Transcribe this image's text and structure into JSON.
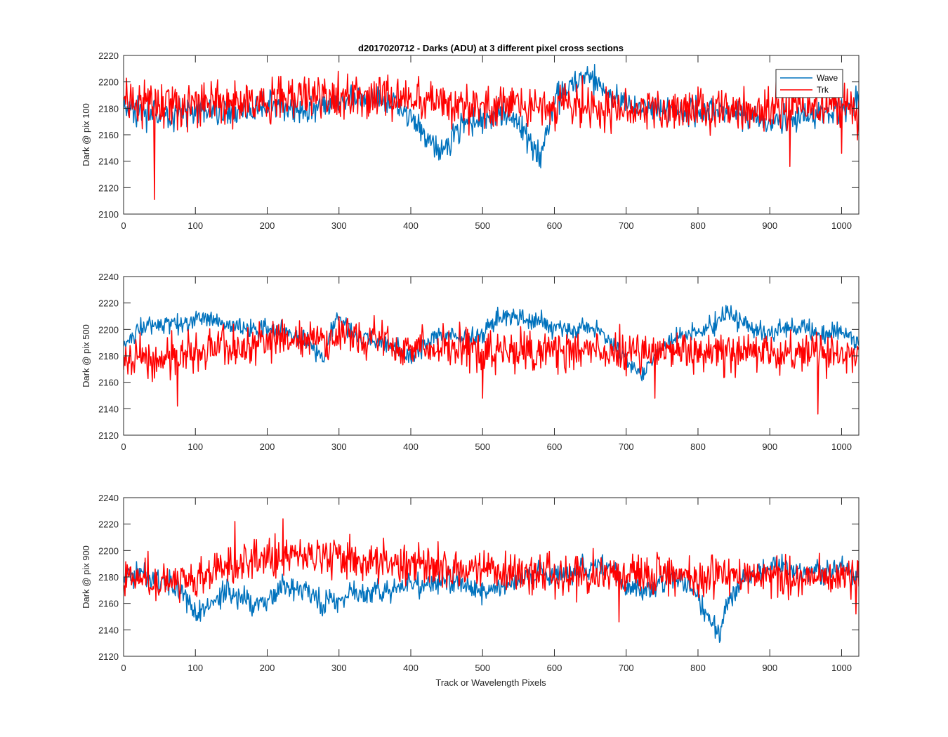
{
  "figure": {
    "title": "d2017020712 - Darks (ADU) at 3 different pixel cross sections",
    "xlabel": "Track or Wavelength Pixels"
  },
  "legend": {
    "placement": "top-right of first panel",
    "entries": [
      {
        "name": "Wave",
        "color": "#0072BD"
      },
      {
        "name": "Trk",
        "color": "#FF0000"
      }
    ]
  },
  "chart_data": [
    {
      "type": "line",
      "ylabel": "Dark @ pix 100",
      "xlim": [
        0,
        1024
      ],
      "ylim": [
        2100,
        2220
      ],
      "xticks": [
        "0",
        "100",
        "200",
        "300",
        "400",
        "500",
        "600",
        "700",
        "800",
        "900",
        "1000"
      ],
      "yticks": [
        "2100",
        "2120",
        "2140",
        "2160",
        "2180",
        "2200",
        "2220"
      ],
      "grid": false,
      "series": [
        {
          "name": "Wave",
          "color": "#0072BD",
          "x": [
            0,
            20,
            40,
            60,
            80,
            100,
            120,
            140,
            160,
            180,
            200,
            220,
            240,
            260,
            280,
            300,
            320,
            340,
            360,
            380,
            400,
            410,
            420,
            430,
            440,
            450,
            460,
            480,
            500,
            520,
            540,
            560,
            570,
            580,
            590,
            600,
            620,
            640,
            660,
            680,
            700,
            720,
            740,
            760,
            780,
            800,
            820,
            840,
            860,
            880,
            900,
            920,
            940,
            960,
            980,
            1000,
            1010,
            1024
          ],
          "y": [
            2180,
            2178,
            2175,
            2172,
            2176,
            2178,
            2180,
            2176,
            2178,
            2180,
            2181,
            2179,
            2178,
            2180,
            2182,
            2185,
            2188,
            2189,
            2188,
            2184,
            2175,
            2168,
            2160,
            2152,
            2146,
            2150,
            2162,
            2170,
            2173,
            2175,
            2172,
            2160,
            2150,
            2142,
            2160,
            2185,
            2196,
            2203,
            2200,
            2188,
            2184,
            2182,
            2181,
            2180,
            2179,
            2178,
            2177,
            2176,
            2175,
            2173,
            2170,
            2172,
            2174,
            2174,
            2175,
            2176,
            2180,
            2187
          ],
          "noise": 7
        },
        {
          "name": "Trk",
          "color": "#FF0000",
          "x": [
            0,
            50,
            100,
            150,
            200,
            250,
            300,
            350,
            400,
            450,
            500,
            550,
            600,
            650,
            700,
            750,
            800,
            850,
            900,
            950,
            1000,
            1024
          ],
          "y": [
            2182,
            2182,
            2182,
            2185,
            2186,
            2188,
            2190,
            2190,
            2186,
            2184,
            2182,
            2182,
            2182,
            2181,
            2181,
            2180,
            2180,
            2180,
            2180,
            2181,
            2181,
            2180
          ],
          "noise": 11,
          "spikes": [
            [
              43,
              2111
            ],
            [
              928,
              2136
            ],
            [
              1000,
              2146
            ],
            [
              1022,
              2156
            ]
          ]
        }
      ]
    },
    {
      "type": "line",
      "ylabel": "Dark @ pix 500",
      "xlim": [
        0,
        1024
      ],
      "ylim": [
        2120,
        2240
      ],
      "xticks": [
        "0",
        "100",
        "200",
        "300",
        "400",
        "500",
        "600",
        "700",
        "800",
        "900",
        "1000"
      ],
      "yticks": [
        "2120",
        "2140",
        "2160",
        "2180",
        "2200",
        "2220",
        "2240"
      ],
      "grid": false,
      "series": [
        {
          "name": "Wave",
          "color": "#0072BD",
          "x": [
            0,
            20,
            40,
            60,
            80,
            100,
            120,
            140,
            160,
            180,
            200,
            220,
            240,
            260,
            280,
            290,
            300,
            320,
            340,
            360,
            380,
            400,
            420,
            440,
            460,
            480,
            500,
            520,
            540,
            560,
            580,
            600,
            620,
            640,
            660,
            680,
            700,
            720,
            740,
            760,
            780,
            800,
            820,
            840,
            860,
            880,
            900,
            920,
            940,
            960,
            980,
            1000,
            1024
          ],
          "y": [
            2188,
            2200,
            2204,
            2206,
            2205,
            2208,
            2206,
            2203,
            2203,
            2200,
            2200,
            2198,
            2194,
            2188,
            2176,
            2200,
            2208,
            2196,
            2192,
            2190,
            2186,
            2180,
            2190,
            2196,
            2196,
            2192,
            2196,
            2208,
            2212,
            2206,
            2206,
            2200,
            2200,
            2200,
            2198,
            2190,
            2175,
            2168,
            2180,
            2190,
            2194,
            2198,
            2204,
            2212,
            2206,
            2200,
            2196,
            2200,
            2202,
            2198,
            2194,
            2200,
            2190
          ],
          "noise": 5
        },
        {
          "name": "Trk",
          "color": "#FF0000",
          "x": [
            0,
            50,
            100,
            150,
            200,
            250,
            300,
            350,
            400,
            450,
            500,
            550,
            600,
            650,
            700,
            750,
            800,
            850,
            900,
            950,
            1000,
            1024
          ],
          "y": [
            2180,
            2178,
            2182,
            2186,
            2190,
            2192,
            2194,
            2192,
            2188,
            2186,
            2184,
            2184,
            2184,
            2184,
            2184,
            2184,
            2184,
            2182,
            2182,
            2184,
            2182,
            2178
          ],
          "noise": 10,
          "spikes": [
            [
              75,
              2142
            ],
            [
              967,
              2136
            ],
            [
              500,
              2148
            ],
            [
              740,
              2148
            ]
          ]
        }
      ]
    },
    {
      "type": "line",
      "ylabel": "Dark @ pix 900",
      "xlim": [
        0,
        1024
      ],
      "ylim": [
        2120,
        2240
      ],
      "xticks": [
        "0",
        "100",
        "200",
        "300",
        "400",
        "500",
        "600",
        "700",
        "800",
        "900",
        "1000"
      ],
      "yticks": [
        "2120",
        "2140",
        "2160",
        "2180",
        "2200",
        "2220",
        "2240"
      ],
      "grid": false,
      "series": [
        {
          "name": "Wave",
          "color": "#0072BD",
          "x": [
            0,
            20,
            40,
            60,
            80,
            100,
            120,
            140,
            160,
            180,
            200,
            220,
            240,
            260,
            280,
            300,
            320,
            340,
            360,
            380,
            400,
            420,
            440,
            460,
            480,
            500,
            520,
            540,
            560,
            580,
            600,
            620,
            640,
            660,
            680,
            700,
            720,
            740,
            760,
            780,
            800,
            810,
            820,
            830,
            840,
            860,
            880,
            900,
            920,
            940,
            960,
            980,
            1000,
            1024
          ],
          "y": [
            2180,
            2182,
            2180,
            2176,
            2168,
            2155,
            2158,
            2170,
            2165,
            2158,
            2162,
            2174,
            2172,
            2168,
            2160,
            2165,
            2170,
            2168,
            2170,
            2172,
            2174,
            2176,
            2178,
            2176,
            2172,
            2168,
            2172,
            2176,
            2180,
            2182,
            2182,
            2184,
            2186,
            2188,
            2186,
            2172,
            2170,
            2172,
            2180,
            2176,
            2166,
            2152,
            2146,
            2136,
            2160,
            2176,
            2182,
            2188,
            2186,
            2184,
            2182,
            2182,
            2188,
            2180
          ],
          "noise": 6
        },
        {
          "name": "Trk",
          "color": "#FF0000",
          "x": [
            0,
            50,
            100,
            150,
            200,
            250,
            300,
            350,
            400,
            450,
            500,
            550,
            600,
            650,
            700,
            750,
            800,
            850,
            900,
            950,
            1000,
            1024
          ],
          "y": [
            2180,
            2178,
            2180,
            2188,
            2194,
            2196,
            2194,
            2192,
            2190,
            2188,
            2186,
            2184,
            2182,
            2182,
            2182,
            2182,
            2180,
            2180,
            2180,
            2180,
            2180,
            2176
          ],
          "noise": 10,
          "spikes": [
            [
              155,
              2222
            ],
            [
              222,
              2224
            ],
            [
              690,
              2146
            ],
            [
              1020,
              2152
            ]
          ]
        }
      ]
    }
  ]
}
